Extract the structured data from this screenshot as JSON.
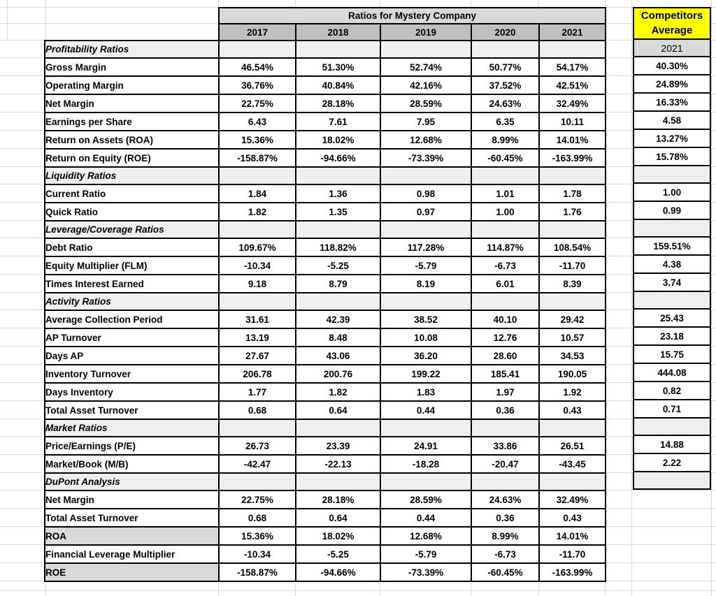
{
  "title": "Ratios for Mystery Company",
  "years": [
    "2017",
    "2018",
    "2019",
    "2020",
    "2021"
  ],
  "competitors_header": {
    "line1": "Competitors",
    "line2": "Average",
    "year": "2021"
  },
  "colors": {
    "competitors_bg": "#ffff00",
    "title_bg": "#d9d9d9",
    "year_header_bg": "#bfbfbf",
    "section_row_bg": "#efefef",
    "shaded_label_bg": "#d9d9d9",
    "section_text_green": "#43a047",
    "border_black": "#000000",
    "gridline_gray": "#d9d9d9"
  },
  "sections": [
    {
      "label": "Profitability Ratios",
      "rows": [
        {
          "label": "Gross Margin",
          "values": [
            "46.54%",
            "51.30%",
            "52.74%",
            "50.77%",
            "54.17%"
          ],
          "competitor": "40.30%"
        },
        {
          "label": "Operating Margin",
          "values": [
            "36.76%",
            "40.84%",
            "42.16%",
            "37.52%",
            "42.51%"
          ],
          "competitor": "24.89%"
        },
        {
          "label": "Net Margin",
          "values": [
            "22.75%",
            "28.18%",
            "28.59%",
            "24.63%",
            "32.49%"
          ],
          "competitor": "16.33%"
        },
        {
          "label": "Earnings per Share",
          "values": [
            "6.43",
            "7.61",
            "7.95",
            "6.35",
            "10.11"
          ],
          "competitor": "4.58"
        },
        {
          "label": "Return on Assets (ROA)",
          "values": [
            "15.36%",
            "18.02%",
            "12.68%",
            "8.99%",
            "14.01%"
          ],
          "competitor": "13.27%"
        },
        {
          "label": "Return on Equity (ROE)",
          "values": [
            "-158.87%",
            "-94.66%",
            "-73.39%",
            "-60.45%",
            "-163.99%"
          ],
          "competitor": "15.78%"
        }
      ]
    },
    {
      "label": "Liquidity Ratios",
      "rows": [
        {
          "label": "Current Ratio",
          "values": [
            "1.84",
            "1.36",
            "0.98",
            "1.01",
            "1.78"
          ],
          "competitor": "1.00"
        },
        {
          "label": "Quick Ratio",
          "values": [
            "1.82",
            "1.35",
            "0.97",
            "1.00",
            "1.76"
          ],
          "competitor": "0.99"
        }
      ]
    },
    {
      "label": "Leverage/Coverage Ratios",
      "rows": [
        {
          "label": "Debt Ratio",
          "values": [
            "109.67%",
            "118.82%",
            "117.28%",
            "114.87%",
            "108.54%"
          ],
          "competitor": "159.51%"
        },
        {
          "label": "Equity Multiplier (FLM)",
          "values": [
            "-10.34",
            "-5.25",
            "-5.79",
            "-6.73",
            "-11.70"
          ],
          "competitor": "4.38"
        },
        {
          "label": "Times Interest Earned",
          "values": [
            "9.18",
            "8.79",
            "8.19",
            "6.01",
            "8.39"
          ],
          "competitor": "3.74"
        }
      ]
    },
    {
      "label": "Activity Ratios",
      "rows": [
        {
          "label": "Average Collection Period",
          "values": [
            "31.61",
            "42.39",
            "38.52",
            "40.10",
            "29.42"
          ],
          "competitor": "25.43"
        },
        {
          "label": "AP Turnover",
          "values": [
            "13.19",
            "8.48",
            "10.08",
            "12.76",
            "10.57"
          ],
          "competitor": "23.18"
        },
        {
          "label": "Days AP",
          "values": [
            "27.67",
            "43.06",
            "36.20",
            "28.60",
            "34.53"
          ],
          "competitor": "15.75"
        },
        {
          "label": "Inventory Turnover",
          "values": [
            "206.78",
            "200.76",
            "199.22",
            "185.41",
            "190.05"
          ],
          "competitor": "444.08"
        },
        {
          "label": "Days Inventory",
          "values": [
            "1.77",
            "1.82",
            "1.83",
            "1.97",
            "1.92"
          ],
          "competitor": "0.82"
        },
        {
          "label": "Total Asset Turnover",
          "values": [
            "0.68",
            "0.64",
            "0.44",
            "0.36",
            "0.43"
          ],
          "competitor": "0.71"
        }
      ]
    },
    {
      "label": "Market Ratios",
      "rows": [
        {
          "label": "Price/Earnings (P/E)",
          "values": [
            "26.73",
            "23.39",
            "24.91",
            "33.86",
            "26.51"
          ],
          "competitor": "14.88"
        },
        {
          "label": "Market/Book (M/B)",
          "values": [
            "-42.47",
            "-22.13",
            "-18.28",
            "-20.47",
            "-43.45"
          ],
          "competitor": "2.22"
        }
      ]
    },
    {
      "label": "DuPont Analysis",
      "rows": [
        {
          "label": "Net Margin",
          "values": [
            "22.75%",
            "28.18%",
            "28.59%",
            "24.63%",
            "32.49%"
          ],
          "competitor": null
        },
        {
          "label": "Total Asset Turnover",
          "values": [
            "0.68",
            "0.64",
            "0.44",
            "0.36",
            "0.43"
          ],
          "competitor": null
        },
        {
          "label": "ROA",
          "values": [
            "15.36%",
            "18.02%",
            "12.68%",
            "8.99%",
            "14.01%"
          ],
          "competitor": null,
          "shaded": true
        },
        {
          "label": "Financial Leverage Multiplier",
          "values": [
            "-10.34",
            "-5.25",
            "-5.79",
            "-6.73",
            "-11.70"
          ],
          "competitor": null
        },
        {
          "label": "ROE",
          "values": [
            "-158.87%",
            "-94.66%",
            "-73.39%",
            "-60.45%",
            "-163.99%"
          ],
          "competitor": null,
          "shaded": true
        }
      ]
    }
  ]
}
